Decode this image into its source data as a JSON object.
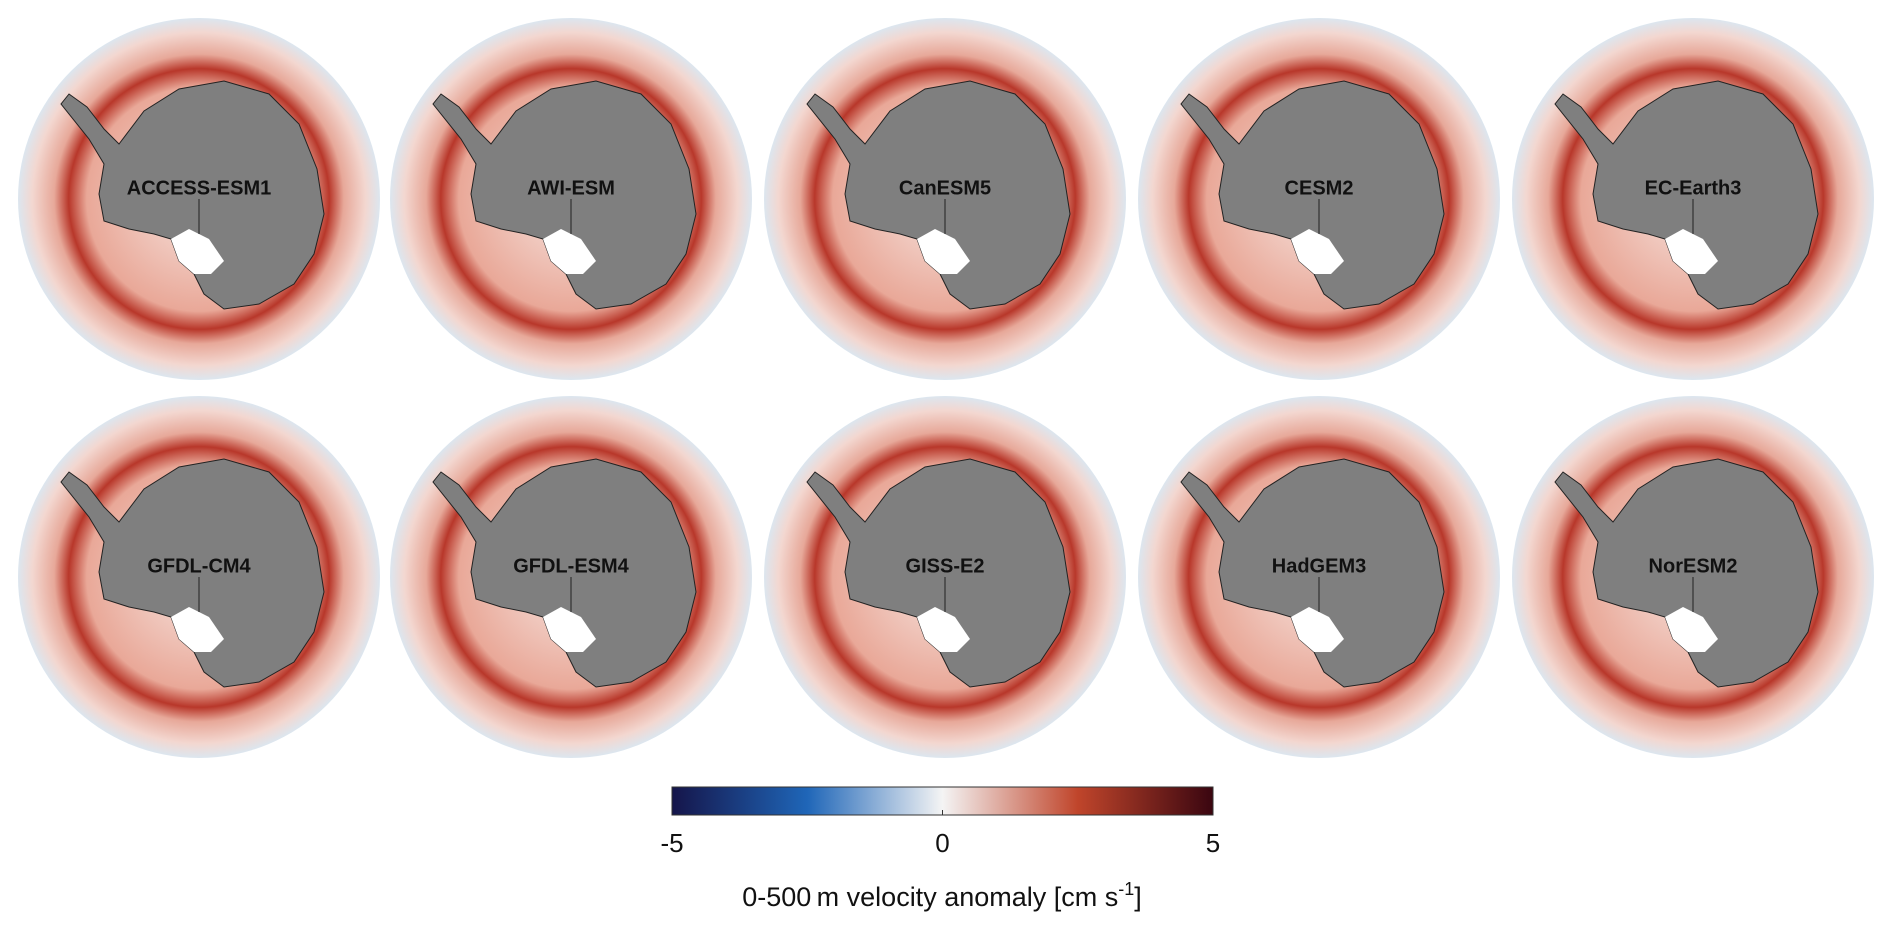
{
  "panels": [
    {
      "label": "ACCESS-ESM1"
    },
    {
      "label": "AWI-ESM"
    },
    {
      "label": "CanESM5"
    },
    {
      "label": "CESM2"
    },
    {
      "label": "EC-Earth3"
    },
    {
      "label": "GFDL-CM4"
    },
    {
      "label": "GFDL-ESM4"
    },
    {
      "label": "GISS-E2"
    },
    {
      "label": "HadGEM3"
    },
    {
      "label": "NorESM2"
    }
  ],
  "colorbar": {
    "lim": [
      -5,
      5
    ],
    "ticks": [
      -5,
      0,
      5
    ],
    "colormap": [
      "#15154a",
      "#1f66b8",
      "#f4f4f4",
      "#c0452b",
      "#3a0610"
    ],
    "label": "0-500 m velocity anomaly [cm s",
    "label_superscript": "-1",
    "label_end": "]"
  }
}
